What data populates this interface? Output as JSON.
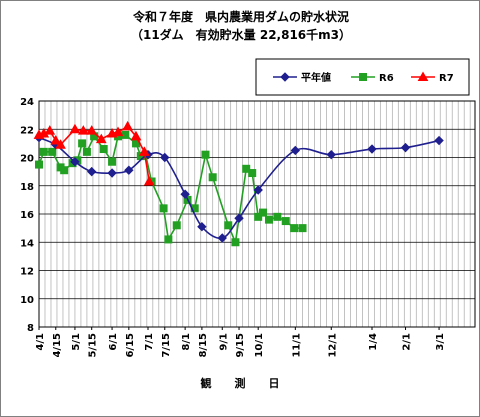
{
  "chart_data": {
    "type": "line",
    "title": "令和７年度　県内農業用ダムの貯水状況",
    "subtitle": "（11ダム　有効貯水量 22,816千m3）",
    "xlabel": "観　測　日",
    "ylabel": "",
    "ylim": [
      8,
      24
    ],
    "yticks": [
      "8",
      "10",
      "12",
      "14",
      "16",
      "18",
      "20",
      "22",
      "24"
    ],
    "grid": true,
    "legend_position": "top-right",
    "x_tick_labels": [
      "4/1",
      "4/15",
      "5/1",
      "5/15",
      "6/1",
      "6/15",
      "7/1",
      "7/15",
      "8/1",
      "8/15",
      "9/1",
      "9/15",
      "10/1",
      "11/1",
      "12/1",
      "1/4",
      "2/1",
      "3/1"
    ],
    "series": [
      {
        "name": "平年値",
        "color": "#1f1f8f",
        "marker": "diamond",
        "dates": [
          "4/1",
          "4/15",
          "5/1",
          "5/15",
          "6/1",
          "6/15",
          "7/1",
          "7/15",
          "8/1",
          "8/15",
          "9/1",
          "9/15",
          "10/1",
          "11/1",
          "12/1",
          "1/4",
          "2/1",
          "3/1"
        ],
        "values": [
          21.4,
          20.9,
          19.7,
          19.0,
          18.9,
          19.1,
          20.2,
          20.0,
          17.4,
          15.1,
          14.3,
          15.7,
          17.7,
          20.5,
          20.2,
          20.6,
          20.7,
          21.2
        ]
      },
      {
        "name": "R6",
        "color": "#22a022",
        "marker": "square",
        "dates": [
          "4/1",
          "4/5",
          "4/12",
          "4/19",
          "4/22",
          "4/29",
          "5/3",
          "5/7",
          "5/11",
          "5/17",
          "5/25",
          "6/1",
          "6/6",
          "6/12",
          "6/21",
          "6/25",
          "6/29",
          "7/4",
          "7/14",
          "7/18",
          "7/25",
          "8/3",
          "8/9",
          "8/18",
          "8/24",
          "9/6",
          "9/12",
          "9/21",
          "9/26",
          "10/1",
          "10/5",
          "10/10",
          "10/17",
          "10/24",
          "10/31",
          "11/7"
        ],
        "values": [
          19.5,
          20.4,
          20.4,
          19.3,
          19.1,
          19.6,
          19.8,
          21.0,
          20.4,
          21.5,
          20.6,
          19.7,
          21.5,
          21.6,
          21.0,
          20.1,
          20.2,
          18.3,
          16.4,
          14.2,
          15.2,
          17.0,
          16.4,
          20.2,
          18.6,
          15.2,
          14.0,
          19.2,
          18.9,
          15.8,
          16.1,
          15.6,
          15.8,
          15.5,
          15.0,
          15.0
        ]
      },
      {
        "name": "R7",
        "color": "#ff0000",
        "marker": "triangle",
        "dates": [
          "4/1",
          "4/5",
          "4/10",
          "4/15",
          "4/19",
          "5/1",
          "5/8",
          "5/15",
          "5/23",
          "6/1",
          "6/6",
          "6/14",
          "6/21",
          "6/28",
          "7/2"
        ],
        "values": [
          21.6,
          21.7,
          21.9,
          21.2,
          20.9,
          22.0,
          21.9,
          21.9,
          21.3,
          21.7,
          21.8,
          22.2,
          21.5,
          20.4,
          18.3
        ]
      }
    ]
  }
}
